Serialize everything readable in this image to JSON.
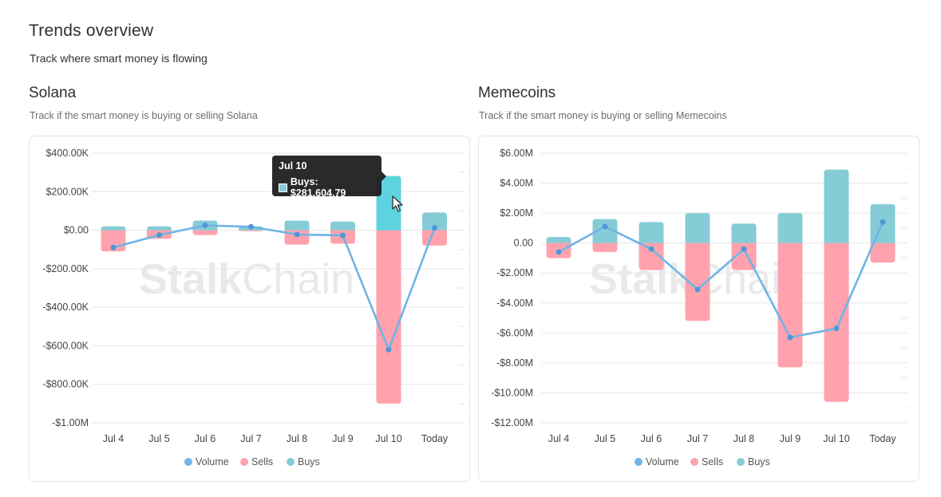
{
  "header": {
    "title": "Trends overview",
    "subtitle": "Track where smart money is flowing"
  },
  "sections": [
    {
      "title": "Solana",
      "description": "Track if the smart money is buying or selling Solana",
      "watermark": "StalkChain"
    },
    {
      "title": "Memecoins",
      "description": "Track if the smart money is buying or selling Memecoins",
      "watermark": "StalkChain"
    }
  ],
  "tooltip": {
    "title": "Jul 10",
    "text": "Buys: $281,604.79"
  },
  "colors": {
    "buys": "#86ccd6",
    "buys_active": "#5ed3e0",
    "sells": "#ffa2ad",
    "volume": "#6fb4e6",
    "grid": "#e6e6e6"
  },
  "icons": {
    "cursor": "mouse-pointer-icon"
  },
  "chart_data": [
    {
      "type": "bar",
      "stacked": true,
      "categories": [
        "Jul 4",
        "Jul 5",
        "Jul 6",
        "Jul 7",
        "Jul 8",
        "Jul 9",
        "Jul 10",
        "Today"
      ],
      "ylim": [
        -1000000,
        400000
      ],
      "yticks": [
        400000,
        200000,
        0,
        -200000,
        -400000,
        -600000,
        -800000,
        -1000000
      ],
      "ytick_labels": [
        "$400.00K",
        "$200.00K",
        "$0.00",
        "-$200.00K",
        "-$400.00K",
        "-$600.00K",
        "-$800.00K",
        "-$1.00M"
      ],
      "grid": true,
      "legend_position": "bottom",
      "highlight_index": 6,
      "series": [
        {
          "name": "Volume",
          "type": "line",
          "values": [
            -90000,
            -25000,
            25000,
            18000,
            -22000,
            -27000,
            -620000,
            12000
          ]
        },
        {
          "name": "Sells",
          "type": "bar",
          "values": [
            -110000,
            -45000,
            -25000,
            -5000,
            -75000,
            -70000,
            -900000,
            -80000
          ]
        },
        {
          "name": "Buys",
          "type": "bar",
          "values": [
            20000,
            20000,
            50000,
            20000,
            50000,
            45000,
            281604.79,
            92000
          ]
        }
      ]
    },
    {
      "type": "bar",
      "stacked": true,
      "categories": [
        "Jul 4",
        "Jul 5",
        "Jul 6",
        "Jul 7",
        "Jul 8",
        "Jul 9",
        "Jul 10",
        "Today"
      ],
      "ylim": [
        -12000000,
        6000000
      ],
      "yticks": [
        6000000,
        4000000,
        2000000,
        0,
        -2000000,
        -4000000,
        -6000000,
        -8000000,
        -10000000,
        -12000000
      ],
      "ytick_labels": [
        "$6.00M",
        "$4.00M",
        "$2.00M",
        "0.00",
        "-$2.00M",
        "-$4.00M",
        "-$6.00M",
        "-$8.00M",
        "-$10.00M",
        "-$12.00M"
      ],
      "grid": true,
      "legend_position": "bottom",
      "series": [
        {
          "name": "Volume",
          "type": "line",
          "values": [
            -600000,
            1100000,
            -400000,
            -3100000,
            -400000,
            -6300000,
            -5700000,
            1400000
          ]
        },
        {
          "name": "Sells",
          "type": "bar",
          "values": [
            -1000000,
            -600000,
            -1800000,
            -5200000,
            -1800000,
            -8300000,
            -10600000,
            -1300000
          ]
        },
        {
          "name": "Buys",
          "type": "bar",
          "values": [
            400000,
            1600000,
            1400000,
            2000000,
            1300000,
            2000000,
            4900000,
            2600000
          ]
        }
      ]
    }
  ]
}
